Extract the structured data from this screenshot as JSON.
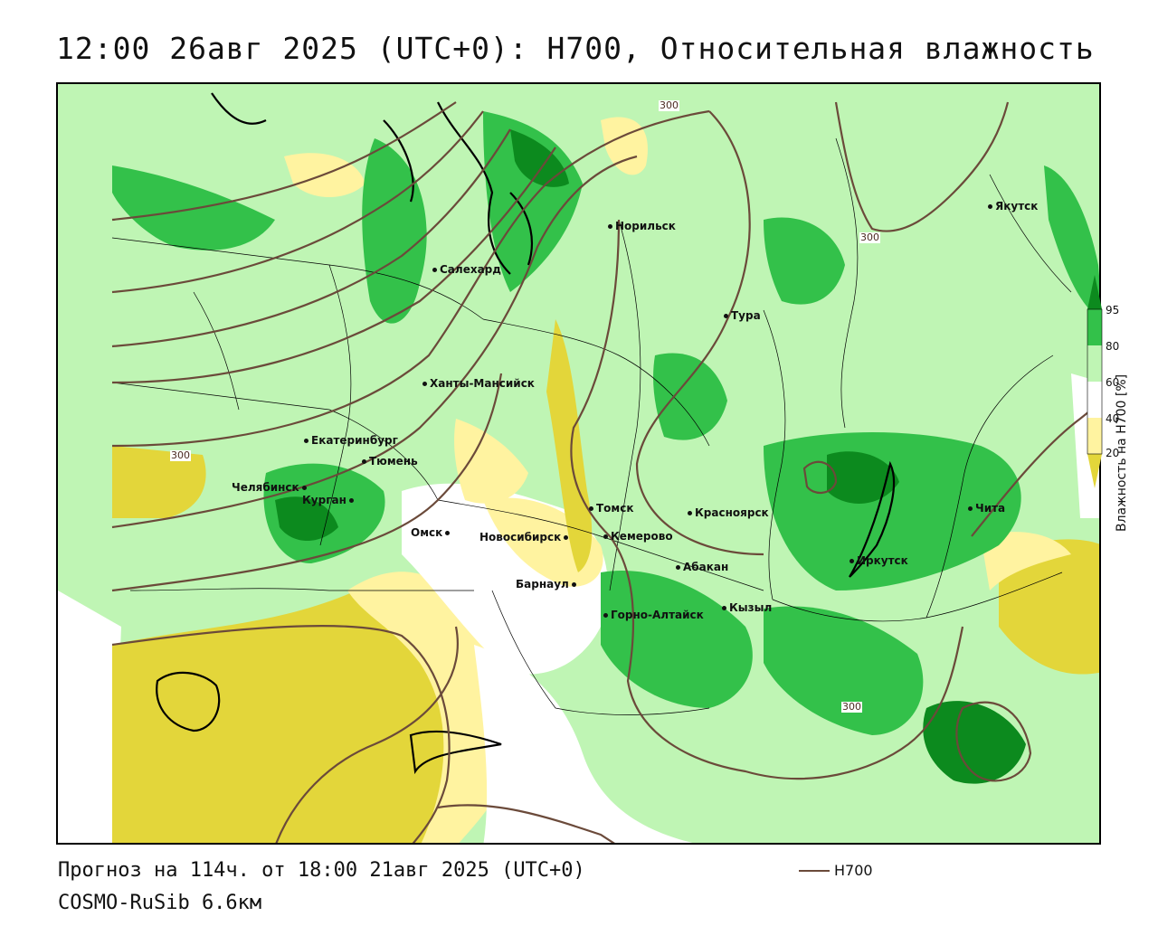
{
  "title": "12:00 26авг 2025 (UTC+0): H700, Относительная влажность",
  "footer": {
    "forecast": "Прогноз на 114ч. от 18:00 21авг 2025 (UTC+0)",
    "model": "COSMO-RuSib 6.6км"
  },
  "legend": {
    "line_label": "H700",
    "line_color": "#6b4a3a"
  },
  "colorbar": {
    "title": "Влажность на H700 [%]",
    "ticks": [
      "95",
      "80",
      "60",
      "40",
      "20"
    ],
    "colors": {
      "c95": "#0c8a1e",
      "c80": "#33c14a",
      "c60": "#bff5b4",
      "c40": "#ffffff",
      "c20": "#fff3a0",
      "c0": "#e3d63a"
    }
  },
  "contour_labels": [
    "300",
    "300",
    "300",
    "300"
  ],
  "cities": [
    {
      "name": "Якутск"
    },
    {
      "name": "Норильск"
    },
    {
      "name": "Салехард"
    },
    {
      "name": "Тура"
    },
    {
      "name": "Ханты-Мансийск"
    },
    {
      "name": "Екатеринбург"
    },
    {
      "name": "Тюмень"
    },
    {
      "name": "Челябинск"
    },
    {
      "name": "Курган"
    },
    {
      "name": "Томск"
    },
    {
      "name": "Омск"
    },
    {
      "name": "Новосибирск"
    },
    {
      "name": "Кемерово"
    },
    {
      "name": "Красноярск"
    },
    {
      "name": "Абакан"
    },
    {
      "name": "Барнаул"
    },
    {
      "name": "Горно-Алтайск"
    },
    {
      "name": "Кызыл"
    },
    {
      "name": "Иркутск"
    },
    {
      "name": "Чита"
    }
  ]
}
